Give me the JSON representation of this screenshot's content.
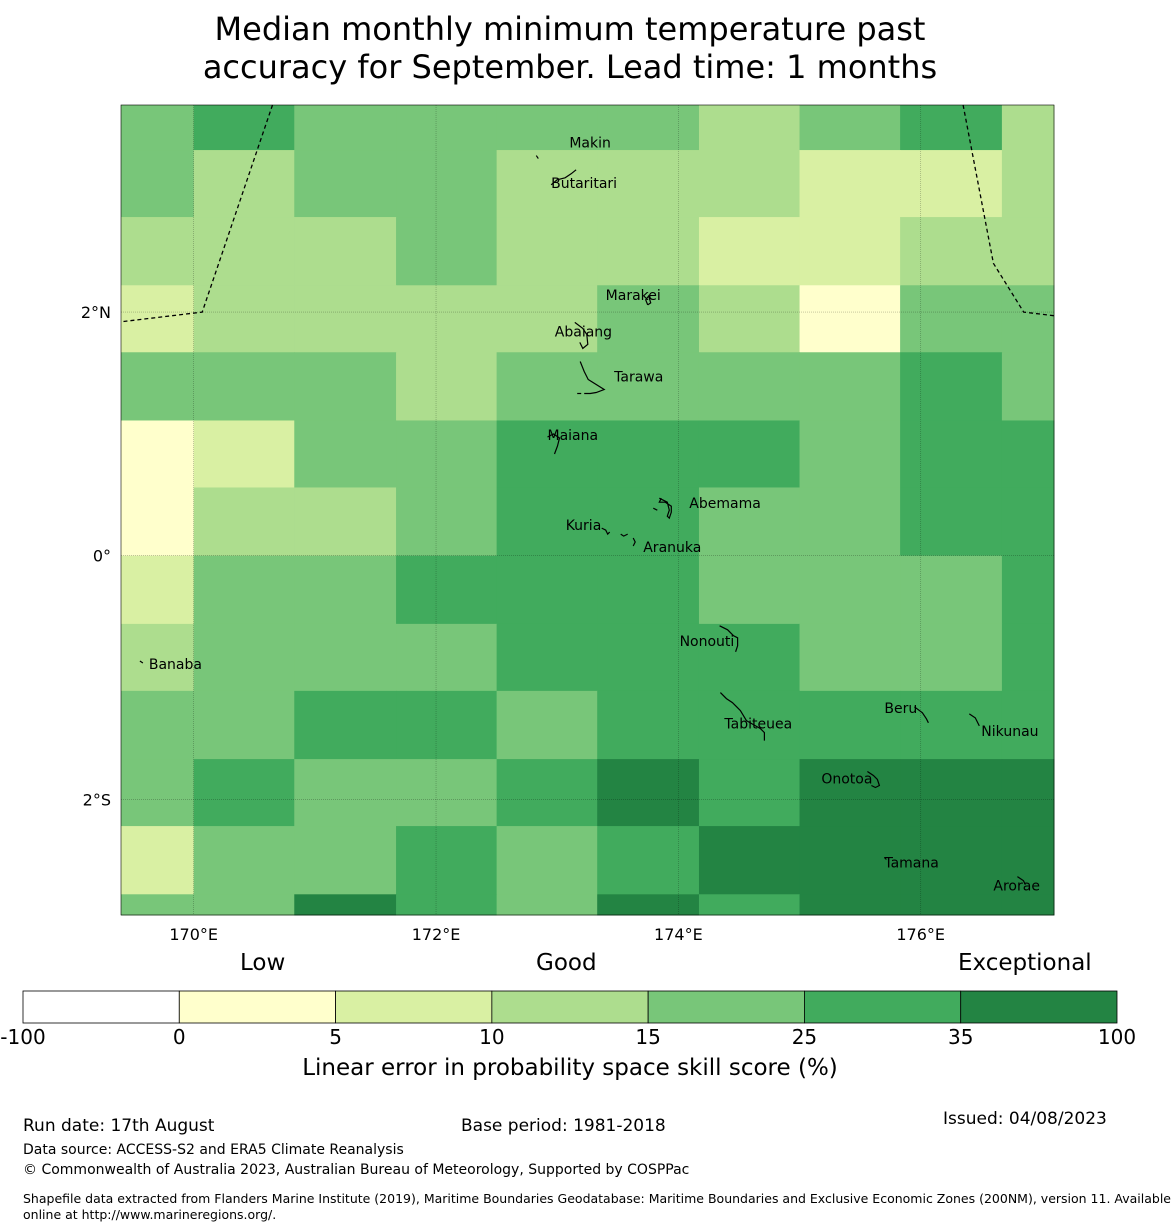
{
  "title_lines": [
    "Median monthly minimum temperature past",
    "accuracy for September. Lead time: 1 months"
  ],
  "map": {
    "lon_range": [
      169.4,
      177.1
    ],
    "lat_range": [
      -2.95,
      3.7
    ],
    "lon_ticks": [
      {
        "value": 170,
        "label": "170°E"
      },
      {
        "value": 172,
        "label": "172°E"
      },
      {
        "value": 174,
        "label": "174°E"
      },
      {
        "value": 176,
        "label": "176°E"
      }
    ],
    "lat_ticks": [
      {
        "value": 2,
        "label": "2°N"
      },
      {
        "value": 0,
        "label": "0°"
      },
      {
        "value": -2,
        "label": "2°S"
      }
    ],
    "grid_col_edges": [
      169.4,
      170.0,
      170.83,
      171.67,
      172.5,
      173.33,
      174.17,
      175.0,
      175.83,
      176.67,
      177.1
    ],
    "grid_row_edges": [
      3.7,
      3.33,
      2.78,
      2.22,
      1.67,
      1.11,
      0.56,
      0.0,
      -0.56,
      -1.11,
      -1.67,
      -2.22,
      -2.78,
      -2.95
    ],
    "skill_classes": [
      [
        4,
        5,
        4,
        4,
        4,
        4,
        3,
        4,
        5,
        3
      ],
      [
        4,
        3,
        4,
        4,
        3,
        3,
        3,
        2,
        2,
        3
      ],
      [
        3,
        3,
        3,
        4,
        3,
        3,
        2,
        2,
        3,
        3
      ],
      [
        2,
        3,
        3,
        3,
        3,
        4,
        3,
        1,
        4,
        4
      ],
      [
        4,
        4,
        4,
        3,
        4,
        4,
        4,
        4,
        5,
        4
      ],
      [
        1,
        2,
        4,
        4,
        5,
        5,
        5,
        4,
        5,
        5
      ],
      [
        1,
        3,
        3,
        4,
        5,
        5,
        4,
        4,
        5,
        5
      ],
      [
        2,
        4,
        4,
        5,
        5,
        5,
        4,
        4,
        4,
        5
      ],
      [
        3,
        4,
        4,
        4,
        5,
        5,
        5,
        4,
        4,
        5
      ],
      [
        4,
        4,
        5,
        5,
        4,
        5,
        5,
        5,
        5,
        5
      ],
      [
        4,
        5,
        4,
        4,
        5,
        6,
        5,
        6,
        6,
        6
      ],
      [
        2,
        4,
        4,
        5,
        4,
        5,
        6,
        6,
        6,
        6
      ],
      [
        4,
        4,
        6,
        5,
        4,
        6,
        5,
        6,
        6,
        6
      ]
    ],
    "boundary_lines": [
      [
        [
          170.65,
          3.7
        ],
        [
          170.07,
          2.0
        ],
        [
          169.4,
          1.92
        ]
      ],
      [
        [
          176.35,
          3.7
        ],
        [
          176.6,
          2.4
        ],
        [
          176.85,
          2.0
        ],
        [
          177.1,
          1.97
        ]
      ]
    ],
    "places": [
      {
        "name": "Makin",
        "lon": 173.1,
        "lat": 3.35,
        "label": "Makin"
      },
      {
        "name": "Butaritari",
        "lon": 172.95,
        "lat": 3.02,
        "label": "Butaritari"
      },
      {
        "name": "Marakei",
        "lon": 173.4,
        "lat": 2.1,
        "label": "Marakei"
      },
      {
        "name": "Abaiang",
        "lon": 172.98,
        "lat": 1.8,
        "label": "Abaiang"
      },
      {
        "name": "Tarawa",
        "lon": 173.47,
        "lat": 1.43,
        "label": "Tarawa"
      },
      {
        "name": "Maiana",
        "lon": 172.92,
        "lat": 0.95,
        "label": "Maiana"
      },
      {
        "name": "Abemama",
        "lon": 174.09,
        "lat": 0.39,
        "label": "Abemama"
      },
      {
        "name": "Kuria",
        "lon": 173.07,
        "lat": 0.21,
        "label": "Kuria"
      },
      {
        "name": "Aranuka",
        "lon": 173.71,
        "lat": 0.03,
        "label": "Aranuka"
      },
      {
        "name": "Nonouti",
        "lon": 174.01,
        "lat": -0.74,
        "label": "Nonouti"
      },
      {
        "name": "Banaba",
        "lon": 169.63,
        "lat": -0.93,
        "label": "Banaba"
      },
      {
        "name": "Tabiteuea",
        "lon": 174.38,
        "lat": -1.42,
        "label": "Tabiteuea"
      },
      {
        "name": "Beru",
        "lon": 175.7,
        "lat": -1.29,
        "label": "Beru"
      },
      {
        "name": "Nikunau",
        "lon": 176.5,
        "lat": -1.48,
        "label": "Nikunau"
      },
      {
        "name": "Onotoa",
        "lon": 175.18,
        "lat": -1.87,
        "label": "Onotoa"
      },
      {
        "name": "Tamana",
        "lon": 175.7,
        "lat": -2.56,
        "label": "Tamana"
      },
      {
        "name": "Arorae",
        "lon": 176.6,
        "lat": -2.75,
        "label": "Arorae"
      }
    ]
  },
  "categories": [
    "Low",
    "Good",
    "Exceptional"
  ],
  "colorbar": {
    "colors": [
      "#ffffff",
      "#ffffcc",
      "#d9f0a3",
      "#addd8e",
      "#78c679",
      "#41ab5d",
      "#238443"
    ],
    "labels": [
      "-100",
      "0",
      "5",
      "10",
      "15",
      "25",
      "35",
      "100"
    ],
    "title": "Linear error in probability space skill score (%)"
  },
  "footer": {
    "run_date": "Run date: 17th August",
    "base_period": "Base period: 1981-2018",
    "issued": "Issued: 04/08/2023",
    "data_source": "Data source: ACCESS-S2 and ERA5 Climate Reanalysis",
    "copyright": "© Commonwealth of Australia 2023, Australian Bureau of Meteorology, Supported by COSPPac",
    "shapefile_1": "Shapefile data extracted from Flanders Marine Institute (2019), Maritime Boundaries Geodatabase: Maritime Boundaries and Exclusive Economic Zones (200NM), version 11. Available",
    "shapefile_2": "online at http://www.marineregions.org/."
  }
}
